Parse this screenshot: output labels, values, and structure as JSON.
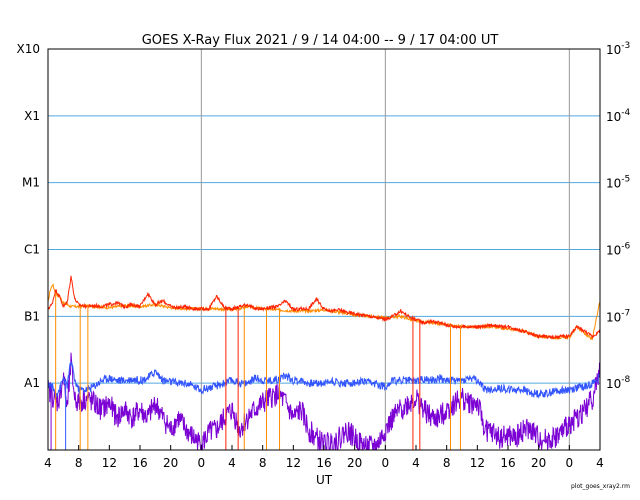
{
  "chart_data": {
    "type": "line",
    "title": "GOES X-Ray Flux   2021 /  9 / 14   04:00 --  9 / 17   04:00   UT",
    "xlabel": "UT",
    "x_range_hours": [
      0,
      72
    ],
    "x_ticks": [
      {
        "hour": 0,
        "label": "4"
      },
      {
        "hour": 4,
        "label": "8"
      },
      {
        "hour": 8,
        "label": "12"
      },
      {
        "hour": 12,
        "label": "16"
      },
      {
        "hour": 16,
        "label": "20"
      },
      {
        "hour": 20,
        "label": "0"
      },
      {
        "hour": 24,
        "label": "4"
      },
      {
        "hour": 28,
        "label": "8"
      },
      {
        "hour": 32,
        "label": "12"
      },
      {
        "hour": 36,
        "label": "16"
      },
      {
        "hour": 40,
        "label": "20"
      },
      {
        "hour": 44,
        "label": "0"
      },
      {
        "hour": 48,
        "label": "4"
      },
      {
        "hour": 52,
        "label": "8"
      },
      {
        "hour": 56,
        "label": "12"
      },
      {
        "hour": 60,
        "label": "16"
      },
      {
        "hour": 64,
        "label": "20"
      },
      {
        "hour": 68,
        "label": "0"
      },
      {
        "hour": 72,
        "label": "4"
      }
    ],
    "day_boundaries_hours": [
      20,
      44,
      68
    ],
    "y_scale": "log",
    "y_range": [
      1e-09,
      0.001
    ],
    "y_left_labels": [
      {
        "value": 0.001,
        "label": "X10"
      },
      {
        "value": 0.0001,
        "label": "X1"
      },
      {
        "value": 1e-05,
        "label": "M1"
      },
      {
        "value": 1e-06,
        "label": "C1"
      },
      {
        "value": 1e-07,
        "label": "B1"
      },
      {
        "value": 1e-08,
        "label": "A1"
      }
    ],
    "y_right_labels": [
      {
        "value": 0.001,
        "base": "10",
        "exp": "-3"
      },
      {
        "value": 0.0001,
        "base": "10",
        "exp": "-4"
      },
      {
        "value": 1e-05,
        "base": "10",
        "exp": "-5"
      },
      {
        "value": 1e-06,
        "base": "10",
        "exp": "-6"
      },
      {
        "value": 1e-07,
        "base": "10",
        "exp": "-7"
      },
      {
        "value": 1e-08,
        "base": "10",
        "exp": "-8"
      }
    ],
    "grid_lines": [
      0.0001,
      1e-05,
      1e-06,
      1e-07,
      1e-08
    ],
    "series": [
      {
        "color": "#ff8c00",
        "x": [
          0,
          0.3,
          0.6,
          1,
          1.5,
          2,
          2.5,
          3,
          4,
          5,
          6,
          8,
          10,
          12,
          14,
          16,
          18,
          20,
          22,
          24,
          26,
          28,
          30,
          32,
          34,
          36,
          38,
          40,
          42,
          44,
          46,
          48,
          50,
          52,
          54,
          56,
          58,
          60,
          62,
          64,
          66,
          68,
          69,
          70,
          71,
          72
        ],
        "y": [
          1.6e-07,
          2.5e-07,
          3e-07,
          2.2e-07,
          2e-07,
          1.6e-07,
          1.5e-07,
          1.4e-07,
          1.4e-07,
          1.45e-07,
          1.4e-07,
          1.35e-07,
          1.45e-07,
          1.4e-07,
          1.5e-07,
          1.35e-07,
          1.3e-07,
          1.3e-07,
          1.3e-07,
          1.25e-07,
          1.4e-07,
          1.3e-07,
          1.25e-07,
          1.2e-07,
          1.2e-07,
          1.25e-07,
          1.15e-07,
          1.05e-07,
          1e-07,
          9.5e-08,
          1e-07,
          8.5e-08,
          8e-08,
          7.5e-08,
          7e-08,
          7e-08,
          7e-08,
          6.5e-08,
          6e-08,
          5e-08,
          4.8e-08,
          4.8e-08,
          7e-08,
          5.5e-08,
          4.5e-08,
          1.8e-07
        ]
      },
      {
        "color": "#ff2200",
        "x": [
          0,
          0.5,
          1,
          1.5,
          2,
          2.5,
          3,
          3.5,
          4,
          5,
          6,
          7,
          8,
          9,
          10,
          11,
          12,
          13,
          14,
          15,
          16,
          17,
          18,
          19,
          20,
          21,
          22,
          23,
          24,
          25,
          26,
          27,
          28,
          29,
          30,
          31,
          32,
          33,
          34,
          35,
          36,
          37,
          38,
          39,
          40,
          41,
          42,
          43,
          44,
          45,
          46,
          47,
          48,
          49,
          50,
          51,
          52,
          53,
          54,
          55,
          56,
          57,
          58,
          59,
          60,
          61,
          62,
          63,
          64,
          65,
          66,
          67,
          68,
          69,
          70,
          71,
          72
        ],
        "y": [
          1.3e-07,
          1.5e-07,
          2.5e-07,
          2e-07,
          1.4e-07,
          1.6e-07,
          4e-07,
          1.8e-07,
          1.5e-07,
          1.4e-07,
          1.45e-07,
          1.4e-07,
          1.5e-07,
          1.6e-07,
          1.4e-07,
          1.5e-07,
          1.4e-07,
          2.2e-07,
          1.5e-07,
          1.7e-07,
          1.4e-07,
          1.35e-07,
          1.4e-07,
          1.3e-07,
          1.3e-07,
          1.3e-07,
          2e-07,
          1.35e-07,
          1.3e-07,
          1.4e-07,
          1.5e-07,
          1.3e-07,
          1.3e-07,
          1.35e-07,
          1.4e-07,
          1.7e-07,
          1.25e-07,
          1.3e-07,
          1.3e-07,
          1.8e-07,
          1.3e-07,
          1.2e-07,
          1.25e-07,
          1.15e-07,
          1.1e-07,
          1.05e-07,
          1e-07,
          9.5e-08,
          9e-08,
          1e-07,
          1.2e-07,
          1e-07,
          9e-08,
          8e-08,
          8.5e-08,
          8e-08,
          7.5e-08,
          7e-08,
          7e-08,
          7e-08,
          7e-08,
          7e-08,
          7.5e-08,
          7e-08,
          7e-08,
          6.5e-08,
          6e-08,
          5.5e-08,
          5e-08,
          5e-08,
          4.8e-08,
          5e-08,
          5e-08,
          7e-08,
          6e-08,
          5e-08,
          6e-08
        ]
      },
      {
        "color": "#7a00d4",
        "x": [
          0,
          0.5,
          1,
          1.5,
          2,
          2.5,
          3,
          3.5,
          4,
          5,
          6,
          7,
          8,
          9,
          10,
          11,
          12,
          13,
          14,
          15,
          16,
          17,
          18,
          19,
          20,
          21,
          22,
          23,
          24,
          25,
          26,
          27,
          28,
          29,
          30,
          31,
          32,
          33,
          34,
          35,
          36,
          37,
          38,
          39,
          40,
          41,
          42,
          43,
          44,
          45,
          46,
          47,
          48,
          49,
          50,
          51,
          52,
          53,
          54,
          55,
          56,
          57,
          58,
          59,
          60,
          61,
          62,
          63,
          64,
          65,
          66,
          67,
          68,
          69,
          70,
          71,
          72
        ],
        "y": [
          8e-09,
          7e-09,
          5e-09,
          6e-09,
          1.3e-08,
          4e-09,
          2e-08,
          6e-09,
          5e-09,
          6e-09,
          5e-09,
          4e-09,
          5e-09,
          3e-09,
          4e-09,
          3e-09,
          4e-09,
          3e-09,
          5e-09,
          3e-09,
          2e-09,
          3e-09,
          2e-09,
          1.5e-09,
          1.2e-09,
          1.8e-09,
          2e-09,
          3e-09,
          4e-09,
          2e-09,
          3e-09,
          4e-09,
          5e-09,
          6e-09,
          7e-09,
          5e-09,
          3e-09,
          4e-09,
          2e-09,
          1.5e-09,
          1.2e-09,
          1.3e-09,
          1.5e-09,
          2e-09,
          1.5e-09,
          1.2e-09,
          1.1e-09,
          1.2e-09,
          2e-09,
          3e-09,
          4e-09,
          5e-09,
          6e-09,
          4e-09,
          3e-09,
          3e-09,
          4e-09,
          5e-09,
          6e-09,
          5e-09,
          5e-09,
          2e-09,
          1.8e-09,
          1.5e-09,
          1.6e-09,
          1.5e-09,
          2e-09,
          2e-09,
          1.5e-09,
          1.4e-09,
          1.5e-09,
          1.8e-09,
          2.5e-09,
          3e-09,
          4e-09,
          6e-09,
          1.5e-08
        ]
      },
      {
        "color": "#3355ff",
        "x": [
          0,
          0.5,
          1,
          1.5,
          2,
          2.5,
          3,
          3.5,
          4,
          5,
          6,
          7,
          8,
          9,
          10,
          11,
          12,
          13,
          14,
          15,
          16,
          17,
          18,
          19,
          20,
          21,
          22,
          23,
          24,
          25,
          26,
          27,
          28,
          29,
          30,
          31,
          32,
          33,
          34,
          35,
          36,
          37,
          38,
          39,
          40,
          41,
          42,
          43,
          44,
          45,
          46,
          47,
          48,
          49,
          50,
          51,
          52,
          53,
          54,
          55,
          56,
          57,
          58,
          59,
          60,
          61,
          62,
          63,
          64,
          65,
          66,
          67,
          68,
          69,
          70,
          71,
          72
        ],
        "y": [
          1e-08,
          9e-09,
          7e-09,
          8e-09,
          1.2e-08,
          9e-09,
          2.2e-08,
          1.1e-08,
          8e-09,
          8e-09,
          9e-09,
          1.1e-08,
          1.2e-08,
          1.1e-08,
          1.1e-08,
          1.15e-08,
          1.1e-08,
          1.2e-08,
          1.5e-08,
          1.1e-08,
          1.05e-08,
          1e-08,
          1e-08,
          9e-09,
          8e-09,
          8.5e-09,
          9e-09,
          1e-08,
          1.1e-08,
          1e-08,
          1e-08,
          1.2e-08,
          1.1e-08,
          1.1e-08,
          1.15e-08,
          1.3e-08,
          1.1e-08,
          1.1e-08,
          1e-08,
          1e-08,
          1e-08,
          1.1e-08,
          1e-08,
          1e-08,
          1e-08,
          1.05e-08,
          1e-08,
          9.5e-09,
          9e-09,
          1.1e-08,
          1.1e-08,
          1.1e-08,
          1.1e-08,
          1.15e-08,
          1.1e-08,
          1.2e-08,
          1.1e-08,
          1.1e-08,
          1.1e-08,
          1.2e-08,
          1.1e-08,
          8e-09,
          8e-09,
          8.5e-09,
          8e-09,
          8e-09,
          8e-09,
          7e-09,
          7e-09,
          7e-09,
          7.5e-09,
          8e-09,
          8e-09,
          8.5e-09,
          9e-09,
          1e-08,
          1.2e-08
        ]
      }
    ],
    "dropouts": [
      {
        "hour": 0.4,
        "series": 2
      },
      {
        "hour": 1.0,
        "series": 0
      },
      {
        "hour": 2.3,
        "series": 3
      },
      {
        "hour": 4.2,
        "series": 0
      },
      {
        "hour": 5.2,
        "series": 0
      },
      {
        "hour": 23.2,
        "series": 1
      },
      {
        "hour": 24.8,
        "series": 1
      },
      {
        "hour": 25.6,
        "series": 0
      },
      {
        "hour": 28.5,
        "series": 0
      },
      {
        "hour": 30.2,
        "series": 0
      },
      {
        "hour": 47.6,
        "series": 1
      },
      {
        "hour": 48.5,
        "series": 1
      },
      {
        "hour": 52.5,
        "series": 0
      },
      {
        "hour": 53.8,
        "series": 0
      }
    ],
    "footer": "plot_goes_xray2.rm"
  }
}
